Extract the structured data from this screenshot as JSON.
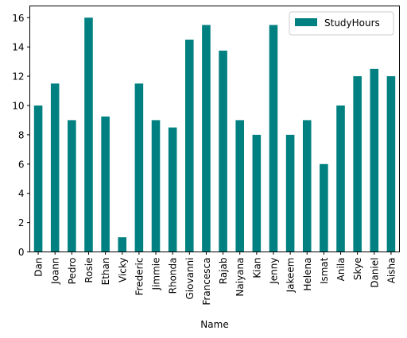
{
  "chart_data": {
    "type": "bar",
    "title": "",
    "xlabel": "Name",
    "ylabel": "",
    "ylim": [
      0,
      16.8
    ],
    "yticks": [
      0,
      2,
      4,
      6,
      8,
      10,
      12,
      14,
      16
    ],
    "grid": false,
    "legend_position": "top-right",
    "categories": [
      "Dan",
      "Joann",
      "Pedro",
      "Rosie",
      "Ethan",
      "Vicky",
      "Frederic",
      "Jimmie",
      "Rhonda",
      "Giovanni",
      "Francesca",
      "Rajab",
      "Naiyana",
      "Kian",
      "Jenny",
      "Jakeem",
      "Helena",
      "Ismat",
      "Anila",
      "Skye",
      "Daniel",
      "Aisha"
    ],
    "series": [
      {
        "name": "StudyHours",
        "color": "#008080",
        "values": [
          10,
          11.5,
          9,
          16,
          9.25,
          1,
          11.5,
          9,
          8.5,
          14.5,
          15.5,
          13.75,
          9,
          8,
          15.5,
          8,
          9,
          6,
          10,
          12,
          12.5,
          12
        ]
      }
    ]
  }
}
